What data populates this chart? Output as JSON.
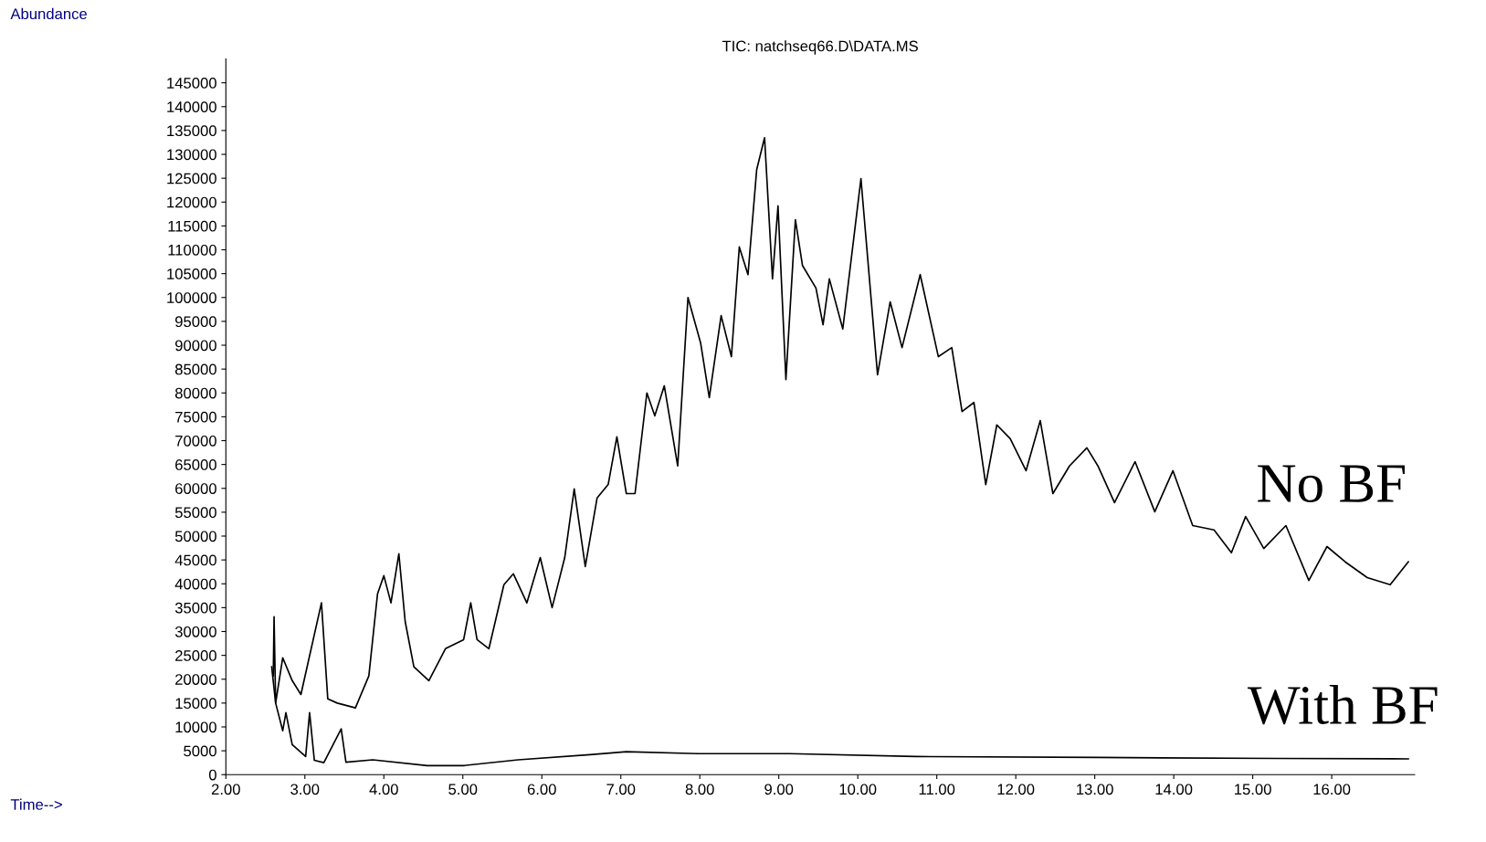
{
  "chart_data": {
    "type": "line",
    "title": "TIC: natchseq66.D\\DATA.MS",
    "annotations": [
      "Abundance",
      "Time-->"
    ],
    "xlim": [
      2,
      17.05
    ],
    "xticks": [
      {
        "value": 2,
        "label": "2.00"
      },
      {
        "value": 3,
        "label": "3.00"
      },
      {
        "value": 4,
        "label": "4.00"
      },
      {
        "value": 5,
        "label": "5.00"
      },
      {
        "value": 6,
        "label": "6.00"
      },
      {
        "value": 7,
        "label": "7.00"
      },
      {
        "value": 8,
        "label": "8.00"
      },
      {
        "value": 9,
        "label": "9.00"
      },
      {
        "value": 10,
        "label": "10.00"
      },
      {
        "value": 11,
        "label": "11.00"
      },
      {
        "value": 12,
        "label": "12.00"
      },
      {
        "value": 13,
        "label": "13.00"
      },
      {
        "value": 14,
        "label": "14.00"
      },
      {
        "value": 15,
        "label": "15.00"
      },
      {
        "value": 16,
        "label": "16.00"
      }
    ],
    "ylim": [
      0,
      150000
    ],
    "yticks": [
      0,
      5000,
      10000,
      15000,
      20000,
      25000,
      30000,
      35000,
      40000,
      45000,
      50000,
      55000,
      60000,
      65000,
      70000,
      75000,
      80000,
      85000,
      90000,
      95000,
      100000,
      105000,
      110000,
      115000,
      120000,
      125000,
      130000,
      135000,
      140000,
      145000
    ],
    "grid": false,
    "legend": false,
    "marker": "none",
    "line_style": "solid",
    "series": [
      {
        "name": "No BF",
        "color": "#000000",
        "x": [
          2.6,
          2.61,
          2.63,
          2.72,
          2.84,
          2.95,
          3.21,
          3.29,
          3.41,
          3.64,
          3.81,
          3.92,
          4.0,
          4.09,
          4.19,
          4.27,
          4.38,
          4.57,
          4.78,
          5.01,
          5.1,
          5.18,
          5.33,
          5.52,
          5.64,
          5.81,
          5.98,
          6.13,
          6.29,
          6.41,
          6.55,
          6.7,
          6.84,
          6.95,
          7.07,
          7.18,
          7.33,
          7.43,
          7.55,
          7.72,
          7.85,
          8.01,
          8.12,
          8.27,
          8.4,
          8.5,
          8.61,
          8.72,
          8.82,
          8.92,
          8.99,
          9.09,
          9.21,
          9.3,
          9.47,
          9.56,
          9.64,
          9.81,
          10.04,
          10.25,
          10.41,
          10.56,
          10.79,
          11.02,
          11.19,
          11.32,
          11.47,
          11.62,
          11.76,
          11.93,
          12.13,
          12.31,
          12.47,
          12.68,
          12.9,
          13.04,
          13.25,
          13.51,
          13.76,
          13.99,
          14.24,
          14.51,
          14.73,
          14.91,
          15.14,
          15.42,
          15.71,
          15.94,
          16.17,
          16.45,
          16.74,
          16.97
        ],
        "values": [
          20700,
          33100,
          15000,
          24500,
          19700,
          16800,
          36000,
          15900,
          15000,
          14000,
          20700,
          37900,
          41700,
          36000,
          46300,
          32100,
          22600,
          19700,
          26400,
          28300,
          36000,
          28300,
          26400,
          39800,
          42100,
          36000,
          45500,
          35000,
          45500,
          59900,
          43600,
          58000,
          60800,
          70800,
          58900,
          58900,
          80000,
          75200,
          81500,
          64700,
          100000,
          90500,
          79000,
          96200,
          87600,
          110600,
          104800,
          126800,
          133500,
          103900,
          119200,
          82800,
          116300,
          106700,
          102000,
          94300,
          103900,
          93400,
          124900,
          83800,
          99100,
          89500,
          104800,
          87600,
          89500,
          76100,
          78000,
          60800,
          73300,
          70400,
          63700,
          74200,
          58900,
          64700,
          68500,
          64700,
          57000,
          65600,
          55100,
          63700,
          52200,
          51300,
          46500,
          54100,
          47400,
          52200,
          40700,
          47800,
          44600,
          41300,
          39800,
          44600
        ]
      },
      {
        "name": "With BF",
        "color": "#000000",
        "x": [
          2.58,
          2.63,
          2.72,
          2.76,
          2.84,
          3.01,
          3.06,
          3.12,
          3.24,
          3.46,
          3.52,
          3.86,
          4.55,
          5.01,
          5.7,
          6.61,
          7.07,
          7.98,
          9.13,
          10.73,
          13.02,
          15.31,
          16.97
        ],
        "values": [
          22600,
          15000,
          9200,
          13000,
          6300,
          3800,
          13000,
          3000,
          2500,
          9600,
          2600,
          3100,
          1900,
          1900,
          3100,
          4200,
          4800,
          4400,
          4400,
          3800,
          3600,
          3400,
          3300
        ]
      }
    ]
  }
}
